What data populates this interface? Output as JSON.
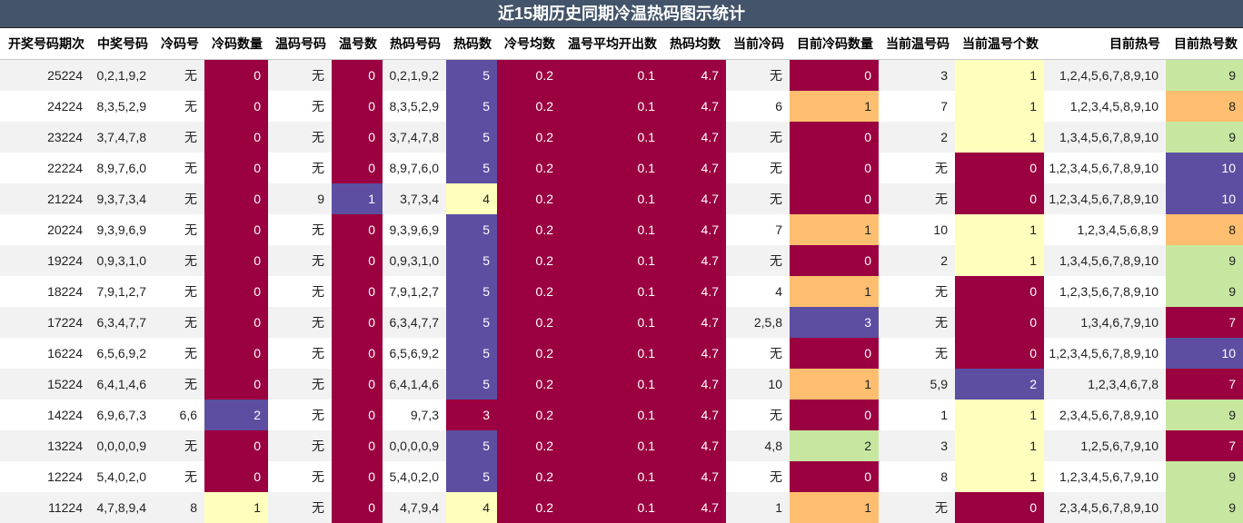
{
  "title": "近15期历史同期冷温热码图示统计",
  "colors": {
    "maroon": "#9b0040",
    "purple": "#5d4ea2",
    "yellow": "#fefebd",
    "orange": "#fdbf6f",
    "green": "#c7e7a1",
    "title_bg": "#44546a"
  },
  "columns": [
    "开奖号码期次",
    "中奖号码",
    "冷码号",
    "冷码数量",
    "温码号码",
    "温号数",
    "热码号码",
    "热码数",
    "冷号均数",
    "温号平均开出数",
    "热码均数",
    "当前冷码",
    "目前冷码数量",
    "当前温号码",
    "当前温号个数",
    "目前热号",
    "目前热号数"
  ],
  "rows": [
    [
      "25224",
      "0,2,1,9,2",
      "无",
      "0",
      "无",
      "0",
      "0,2,1,9,2",
      "5",
      "0.2",
      "0.1",
      "4.7",
      "无",
      "0",
      "3",
      "1",
      "1,2,4,5,6,7,8,9,10",
      "9"
    ],
    [
      "24224",
      "8,3,5,2,9",
      "无",
      "0",
      "无",
      "0",
      "8,3,5,2,9",
      "5",
      "0.2",
      "0.1",
      "4.7",
      "6",
      "1",
      "7",
      "1",
      "1,2,3,4,5,8,9,10",
      "8"
    ],
    [
      "23224",
      "3,7,4,7,8",
      "无",
      "0",
      "无",
      "0",
      "3,7,4,7,8",
      "5",
      "0.2",
      "0.1",
      "4.7",
      "无",
      "0",
      "2",
      "1",
      "1,3,4,5,6,7,8,9,10",
      "9"
    ],
    [
      "22224",
      "8,9,7,6,0",
      "无",
      "0",
      "无",
      "0",
      "8,9,7,6,0",
      "5",
      "0.2",
      "0.1",
      "4.7",
      "无",
      "0",
      "无",
      "0",
      "1,2,3,4,5,6,7,8,9,10",
      "10"
    ],
    [
      "21224",
      "9,3,7,3,4",
      "无",
      "0",
      "9",
      "1",
      "3,7,3,4",
      "4",
      "0.2",
      "0.1",
      "4.7",
      "无",
      "0",
      "无",
      "0",
      "1,2,3,4,5,6,7,8,9,10",
      "10"
    ],
    [
      "20224",
      "9,3,9,6,9",
      "无",
      "0",
      "无",
      "0",
      "9,3,9,6,9",
      "5",
      "0.2",
      "0.1",
      "4.7",
      "7",
      "1",
      "10",
      "1",
      "1,2,3,4,5,6,8,9",
      "8"
    ],
    [
      "19224",
      "0,9,3,1,0",
      "无",
      "0",
      "无",
      "0",
      "0,9,3,1,0",
      "5",
      "0.2",
      "0.1",
      "4.7",
      "无",
      "0",
      "2",
      "1",
      "1,3,4,5,6,7,8,9,10",
      "9"
    ],
    [
      "18224",
      "7,9,1,2,7",
      "无",
      "0",
      "无",
      "0",
      "7,9,1,2,7",
      "5",
      "0.2",
      "0.1",
      "4.7",
      "4",
      "1",
      "无",
      "0",
      "1,2,3,5,6,7,8,9,10",
      "9"
    ],
    [
      "17224",
      "6,3,4,7,7",
      "无",
      "0",
      "无",
      "0",
      "6,3,4,7,7",
      "5",
      "0.2",
      "0.1",
      "4.7",
      "2,5,8",
      "3",
      "无",
      "0",
      "1,3,4,6,7,9,10",
      "7"
    ],
    [
      "16224",
      "6,5,6,9,2",
      "无",
      "0",
      "无",
      "0",
      "6,5,6,9,2",
      "5",
      "0.2",
      "0.1",
      "4.7",
      "无",
      "0",
      "无",
      "0",
      "1,2,3,4,5,6,7,8,9,10",
      "10"
    ],
    [
      "15224",
      "6,4,1,4,6",
      "无",
      "0",
      "无",
      "0",
      "6,4,1,4,6",
      "5",
      "0.2",
      "0.1",
      "4.7",
      "10",
      "1",
      "5,9",
      "2",
      "1,2,3,4,6,7,8",
      "7"
    ],
    [
      "14224",
      "6,9,6,7,3",
      "6,6",
      "2",
      "无",
      "0",
      "9,7,3",
      "3",
      "0.2",
      "0.1",
      "4.7",
      "无",
      "0",
      "1",
      "1",
      "2,3,4,5,6,7,8,9,10",
      "9"
    ],
    [
      "13224",
      "0,0,0,0,9",
      "无",
      "0",
      "无",
      "0",
      "0,0,0,0,9",
      "5",
      "0.2",
      "0.1",
      "4.7",
      "4,8",
      "2",
      "3",
      "1",
      "1,2,5,6,7,9,10",
      "7"
    ],
    [
      "12224",
      "5,4,0,2,0",
      "无",
      "0",
      "无",
      "0",
      "5,4,0,2,0",
      "5",
      "0.2",
      "0.1",
      "4.7",
      "无",
      "0",
      "8",
      "1",
      "1,2,3,4,5,6,7,9,10",
      "9"
    ],
    [
      "11224",
      "4,7,8,9,4",
      "8",
      "1",
      "无",
      "0",
      "4,7,9,4",
      "4",
      "0.2",
      "0.1",
      "4.7",
      "1",
      "1",
      "无",
      "0",
      "2,3,4,5,6,7,8,9,10",
      "9"
    ]
  ],
  "cell_colors": {
    "3": [
      "maroon",
      "maroon",
      "maroon",
      "maroon",
      "maroon",
      "maroon",
      "maroon",
      "maroon",
      "maroon",
      "maroon",
      "maroon",
      "purple",
      "maroon",
      "maroon",
      "yellow"
    ],
    "5": [
      "maroon",
      "maroon",
      "maroon",
      "maroon",
      "purple",
      "maroon",
      "maroon",
      "maroon",
      "maroon",
      "maroon",
      "maroon",
      "maroon",
      "maroon",
      "maroon",
      "maroon"
    ],
    "7": [
      "purple",
      "purple",
      "purple",
      "purple",
      "yellow",
      "purple",
      "purple",
      "purple",
      "purple",
      "purple",
      "purple",
      "maroon",
      "purple",
      "purple",
      "yellow"
    ],
    "12": [
      "maroon",
      "orange",
      "maroon",
      "maroon",
      "maroon",
      "orange",
      "maroon",
      "orange",
      "purple",
      "maroon",
      "orange",
      "maroon",
      "green",
      "maroon",
      "orange"
    ],
    "14": [
      "yellow",
      "yellow",
      "yellow",
      "maroon",
      "maroon",
      "yellow",
      "yellow",
      "maroon",
      "maroon",
      "maroon",
      "purple",
      "yellow",
      "yellow",
      "yellow",
      "maroon"
    ],
    "16": [
      "green",
      "orange",
      "green",
      "purple",
      "purple",
      "orange",
      "green",
      "green",
      "maroon",
      "purple",
      "maroon",
      "green",
      "maroon",
      "green",
      "green"
    ]
  }
}
